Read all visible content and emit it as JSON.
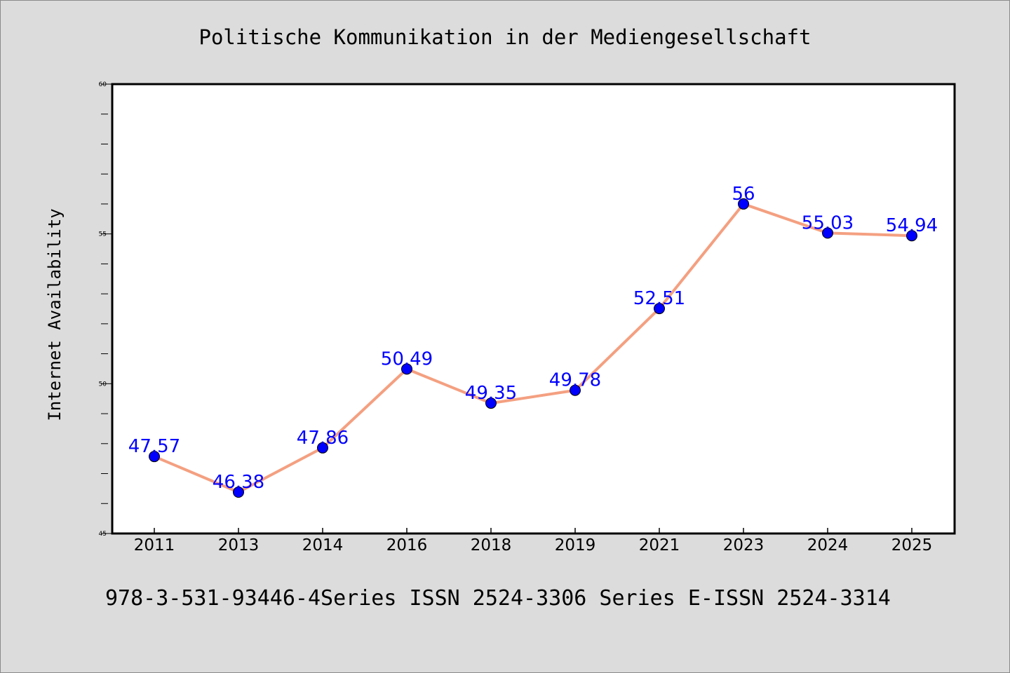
{
  "chart_data": {
    "type": "line",
    "title": "Politische Kommunikation in der Mediengesellschaft",
    "xlabel": "",
    "ylabel": "Internet Availability",
    "categories": [
      "2011",
      "2013",
      "2014",
      "2016",
      "2018",
      "2019",
      "2021",
      "2023",
      "2024",
      "2025"
    ],
    "series": [
      {
        "values": [
          47.57,
          46.38,
          47.86,
          50.49,
          49.35,
          49.78,
          52.51,
          56,
          55.03,
          54.94
        ],
        "labels": [
          "47.57",
          "46.38",
          "47.86",
          "50.49",
          "49.35",
          "49.78",
          "52.51",
          "56",
          "55.03",
          "54.94"
        ]
      }
    ],
    "ylim": [
      45,
      60
    ],
    "yticks": [
      45,
      50,
      55,
      60
    ],
    "ytick_labels": [
      "45",
      "50",
      "55",
      "60"
    ],
    "grid": false,
    "colors": {
      "line": "#f4a081",
      "marker": "#0000ff",
      "data_label": "#0000ff",
      "plot_background": "#ffffff",
      "figure_background": "#dcdcdc"
    }
  },
  "footer_text": "978-3-531-93446-4Series ISSN 2524-3306 Series E-ISSN 2524-3314"
}
